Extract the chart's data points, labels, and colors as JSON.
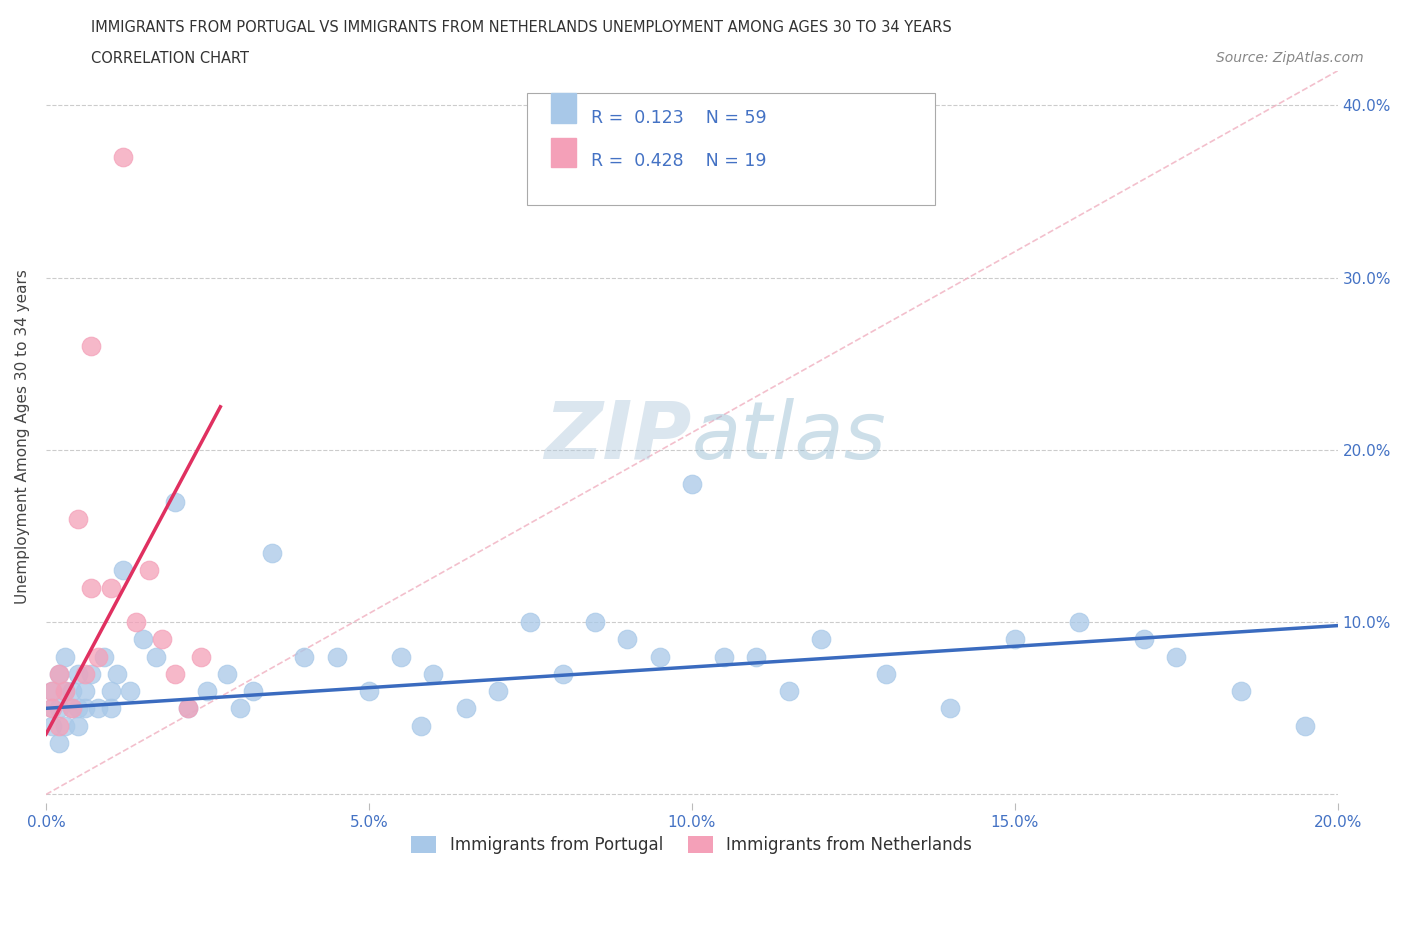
{
  "title_line1": "IMMIGRANTS FROM PORTUGAL VS IMMIGRANTS FROM NETHERLANDS UNEMPLOYMENT AMONG AGES 30 TO 34 YEARS",
  "title_line2": "CORRELATION CHART",
  "source_text": "Source: ZipAtlas.com",
  "ylabel": "Unemployment Among Ages 30 to 34 years",
  "xlabel_portugal": "Immigrants from Portugal",
  "xlabel_netherlands": "Immigrants from Netherlands",
  "xlim": [
    0.0,
    0.2
  ],
  "ylim": [
    -0.005,
    0.42
  ],
  "legend_R1": "0.123",
  "legend_N1": "59",
  "legend_R2": "0.428",
  "legend_N2": "19",
  "color_portugal": "#a8c8e8",
  "color_netherlands": "#f4a0b8",
  "color_trendline_portugal": "#3a6bbf",
  "color_trendline_netherlands": "#e03060",
  "color_dashed_line": "#f0b0c0",
  "watermark_color": "#ccdde8",
  "portugal_x": [
    0.001,
    0.001,
    0.001,
    0.002,
    0.002,
    0.002,
    0.003,
    0.003,
    0.003,
    0.004,
    0.004,
    0.005,
    0.005,
    0.005,
    0.006,
    0.006,
    0.007,
    0.008,
    0.009,
    0.01,
    0.01,
    0.011,
    0.012,
    0.013,
    0.015,
    0.017,
    0.02,
    0.022,
    0.025,
    0.028,
    0.03,
    0.032,
    0.035,
    0.04,
    0.045,
    0.05,
    0.055,
    0.058,
    0.06,
    0.065,
    0.07,
    0.075,
    0.08,
    0.085,
    0.09,
    0.095,
    0.1,
    0.105,
    0.11,
    0.115,
    0.12,
    0.13,
    0.14,
    0.15,
    0.16,
    0.17,
    0.175,
    0.185,
    0.195
  ],
  "portugal_y": [
    0.05,
    0.04,
    0.06,
    0.05,
    0.07,
    0.03,
    0.06,
    0.08,
    0.04,
    0.06,
    0.05,
    0.07,
    0.05,
    0.04,
    0.06,
    0.05,
    0.07,
    0.05,
    0.08,
    0.06,
    0.05,
    0.07,
    0.13,
    0.06,
    0.09,
    0.08,
    0.17,
    0.05,
    0.06,
    0.07,
    0.05,
    0.06,
    0.14,
    0.08,
    0.08,
    0.06,
    0.08,
    0.04,
    0.07,
    0.05,
    0.06,
    0.1,
    0.07,
    0.1,
    0.09,
    0.08,
    0.18,
    0.08,
    0.08,
    0.06,
    0.09,
    0.07,
    0.05,
    0.09,
    0.1,
    0.09,
    0.08,
    0.06,
    0.04
  ],
  "netherlands_x": [
    0.001,
    0.001,
    0.002,
    0.002,
    0.003,
    0.004,
    0.005,
    0.006,
    0.007,
    0.008,
    0.01,
    0.012,
    0.014,
    0.016,
    0.018,
    0.02,
    0.022,
    0.024,
    0.026
  ],
  "netherlands_y": [
    0.05,
    0.06,
    0.04,
    0.07,
    0.06,
    0.05,
    0.16,
    0.07,
    0.12,
    0.08,
    0.12,
    0.26,
    0.1,
    0.13,
    0.09,
    0.07,
    0.05,
    0.08,
    0.37
  ]
}
